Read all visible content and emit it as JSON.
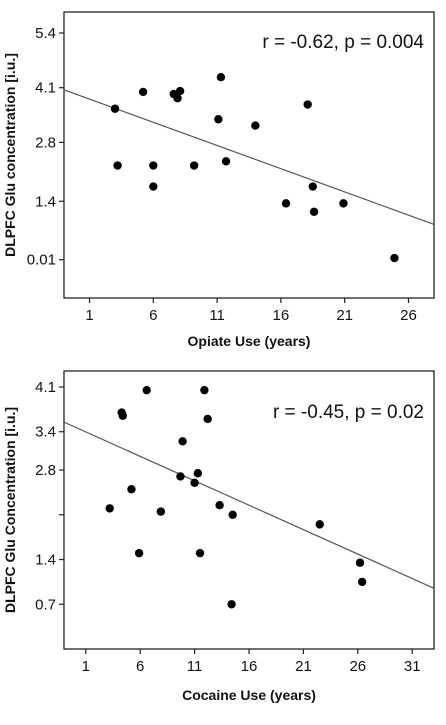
{
  "chart_data": [
    {
      "type": "scatter",
      "xlabel": "Opiate Use (years)",
      "ylabel": "DLPFC Glu concentration [i.u.]",
      "annotation": "r = -0.62, p = 0.004",
      "xlim": [
        -1,
        28
      ],
      "ylim": [
        -0.9,
        5.9
      ],
      "xticks": [
        1,
        6,
        11,
        16,
        21,
        26
      ],
      "yticks": [
        0.01,
        1.4,
        2.8,
        4.1,
        5.4
      ],
      "ytick_labels": [
        "0.01",
        "1.4",
        "2.8",
        "4.1",
        "5.4"
      ],
      "grid": false,
      "fit_line": {
        "x": [
          -1,
          28
        ],
        "y": [
          4.05,
          0.85
        ]
      },
      "points": [
        {
          "x": 3,
          "y": 3.6
        },
        {
          "x": 3.2,
          "y": 2.25
        },
        {
          "x": 5.2,
          "y": 4.0
        },
        {
          "x": 6,
          "y": 2.25
        },
        {
          "x": 6,
          "y": 1.75
        },
        {
          "x": 7.6,
          "y": 3.95
        },
        {
          "x": 7.9,
          "y": 3.85
        },
        {
          "x": 8.1,
          "y": 4.02
        },
        {
          "x": 9.2,
          "y": 2.25
        },
        {
          "x": 11.1,
          "y": 3.35
        },
        {
          "x": 11.3,
          "y": 4.35
        },
        {
          "x": 11.7,
          "y": 2.35
        },
        {
          "x": 14.0,
          "y": 3.2
        },
        {
          "x": 16.4,
          "y": 1.35
        },
        {
          "x": 18.1,
          "y": 3.7
        },
        {
          "x": 18.5,
          "y": 1.75
        },
        {
          "x": 18.6,
          "y": 1.15
        },
        {
          "x": 20.9,
          "y": 1.35
        },
        {
          "x": 24.9,
          "y": 0.05
        }
      ]
    },
    {
      "type": "scatter",
      "xlabel": "Cocaine Use (years)",
      "ylabel": "DLPFC Glu Concentration [i.u.]",
      "annotation": "r = -0.45, p = 0.02",
      "xlim": [
        -1,
        33
      ],
      "ylim": [
        0.0,
        4.35
      ],
      "xticks": [
        1,
        6,
        11,
        16,
        21,
        26,
        31
      ],
      "yticks": [
        0.7,
        1.4,
        2.1,
        2.8,
        3.4,
        4.1
      ],
      "ytick_labels": [
        "0.7",
        "1.4",
        "",
        "2.8",
        "3.4",
        "4.1"
      ],
      "grid": false,
      "fit_line": {
        "x": [
          -1,
          33
        ],
        "y": [
          3.55,
          0.95
        ]
      },
      "points": [
        {
          "x": 3.2,
          "y": 2.2
        },
        {
          "x": 4.3,
          "y": 3.7
        },
        {
          "x": 4.4,
          "y": 3.65
        },
        {
          "x": 5.2,
          "y": 2.5
        },
        {
          "x": 5.9,
          "y": 1.5
        },
        {
          "x": 6.6,
          "y": 4.05
        },
        {
          "x": 7.9,
          "y": 2.15
        },
        {
          "x": 9.7,
          "y": 2.7
        },
        {
          "x": 9.9,
          "y": 3.25
        },
        {
          "x": 11.0,
          "y": 2.6
        },
        {
          "x": 11.3,
          "y": 2.75
        },
        {
          "x": 11.5,
          "y": 1.5
        },
        {
          "x": 11.9,
          "y": 4.05
        },
        {
          "x": 12.2,
          "y": 3.6
        },
        {
          "x": 13.3,
          "y": 2.25
        },
        {
          "x": 14.4,
          "y": 0.7
        },
        {
          "x": 14.5,
          "y": 2.1
        },
        {
          "x": 22.5,
          "y": 1.95
        },
        {
          "x": 26.2,
          "y": 1.35
        },
        {
          "x": 26.4,
          "y": 1.05
        }
      ]
    }
  ]
}
